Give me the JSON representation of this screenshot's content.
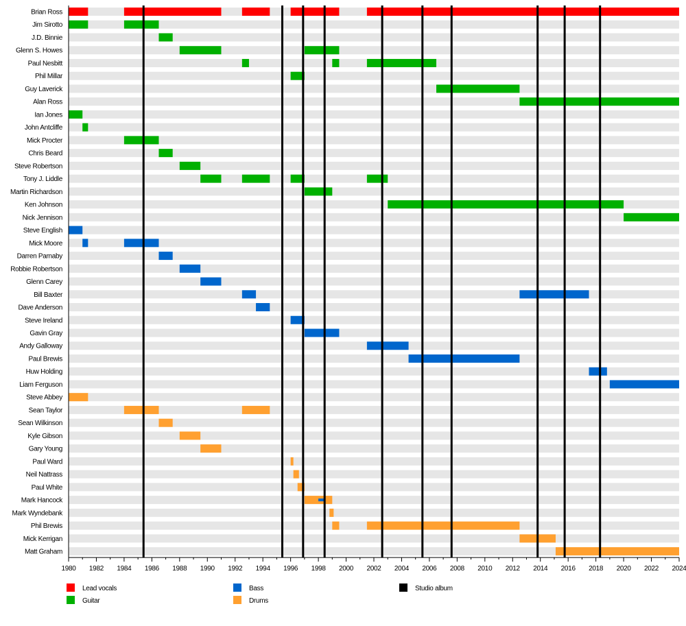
{
  "chart_data": {
    "type": "timeline",
    "xlim": [
      1980,
      2024
    ],
    "x_ticks": [
      1980,
      1982,
      1984,
      1986,
      1988,
      1990,
      1992,
      1994,
      1996,
      1998,
      2000,
      2002,
      2004,
      2006,
      2008,
      2010,
      2012,
      2014,
      2016,
      2018,
      2020,
      2022,
      2024
    ],
    "grid": false,
    "legend_position": "bottom",
    "roles": {
      "vocals": {
        "label": "Lead vocals",
        "color": "#ff0000"
      },
      "guitar": {
        "label": "Guitar",
        "color": "#00b000"
      },
      "bass": {
        "label": "Bass",
        "color": "#0066cc"
      },
      "drums": {
        "label": "Drums",
        "color": "#ffa030"
      },
      "album": {
        "label": "Studio album",
        "color": "#000000"
      }
    },
    "studio_albums": [
      1985.4,
      1995.4,
      1996.9,
      1998.45,
      2002.6,
      2005.5,
      2007.6,
      2013.8,
      2015.75,
      2018.3
    ],
    "members": [
      {
        "name": "Brian Ross",
        "bars": [
          [
            "vocals",
            1980,
            1981.4
          ],
          [
            "vocals",
            1984,
            1991
          ],
          [
            "vocals",
            1992.5,
            1994.5
          ],
          [
            "vocals",
            1996,
            1999.5
          ],
          [
            "vocals",
            2001.5,
            2024
          ]
        ]
      },
      {
        "name": "Jim Sirotto",
        "bars": [
          [
            "guitar",
            1980,
            1981.4
          ],
          [
            "guitar",
            1984,
            1986.5
          ]
        ]
      },
      {
        "name": "J.D. Binnie",
        "bars": [
          [
            "guitar",
            1986.5,
            1987.5
          ]
        ]
      },
      {
        "name": "Glenn S. Howes",
        "bars": [
          [
            "guitar",
            1988,
            1991
          ],
          [
            "guitar",
            1997,
            1999.5
          ]
        ]
      },
      {
        "name": "Paul Nesbitt",
        "bars": [
          [
            "guitar",
            1992.5,
            1993
          ],
          [
            "guitar",
            1999,
            1999.5
          ],
          [
            "guitar",
            2001.5,
            2006.5
          ]
        ]
      },
      {
        "name": "Phil Millar",
        "bars": [
          [
            "guitar",
            1996,
            1997
          ]
        ]
      },
      {
        "name": "Guy Laverick",
        "bars": [
          [
            "guitar",
            2006.5,
            2012.5
          ]
        ]
      },
      {
        "name": "Alan Ross",
        "bars": [
          [
            "guitar",
            2012.5,
            2024
          ]
        ]
      },
      {
        "name": "Ian Jones",
        "bars": [
          [
            "guitar",
            1980,
            1981
          ]
        ]
      },
      {
        "name": "John Antcliffe",
        "bars": [
          [
            "guitar",
            1981,
            1981.4
          ]
        ]
      },
      {
        "name": "Mick Procter",
        "bars": [
          [
            "guitar",
            1984,
            1986.5
          ]
        ]
      },
      {
        "name": "Chris Beard",
        "bars": [
          [
            "guitar",
            1986.5,
            1987.5
          ]
        ]
      },
      {
        "name": "Steve Robertson",
        "bars": [
          [
            "guitar",
            1988,
            1989.5
          ]
        ]
      },
      {
        "name": "Tony J. Liddle",
        "bars": [
          [
            "guitar",
            1989.5,
            1991
          ],
          [
            "guitar",
            1992.5,
            1994.5
          ],
          [
            "guitar",
            1996,
            1997
          ],
          [
            "guitar",
            2001.5,
            2003
          ]
        ]
      },
      {
        "name": "Martin Richardson",
        "bars": [
          [
            "guitar",
            1997,
            1999
          ]
        ]
      },
      {
        "name": "Ken Johnson",
        "bars": [
          [
            "guitar",
            2003,
            2020
          ]
        ]
      },
      {
        "name": "Nick Jennison",
        "bars": [
          [
            "guitar",
            2020,
            2024
          ]
        ]
      },
      {
        "name": "Steve English",
        "bars": [
          [
            "bass",
            1980,
            1981
          ]
        ]
      },
      {
        "name": "Mick Moore",
        "bars": [
          [
            "bass",
            1981,
            1981.4
          ],
          [
            "bass",
            1984,
            1986.5
          ]
        ]
      },
      {
        "name": "Darren Parnaby",
        "bars": [
          [
            "bass",
            1986.5,
            1987.5
          ]
        ]
      },
      {
        "name": "Robbie Robertson",
        "bars": [
          [
            "bass",
            1988,
            1989.5
          ]
        ]
      },
      {
        "name": "Glenn Carey",
        "bars": [
          [
            "bass",
            1989.5,
            1991
          ]
        ]
      },
      {
        "name": "Bill Baxter",
        "bars": [
          [
            "bass",
            1992.5,
            1993.5
          ],
          [
            "bass",
            2012.5,
            2017.5
          ]
        ]
      },
      {
        "name": "Dave Anderson",
        "bars": [
          [
            "bass",
            1993.5,
            1994.5
          ]
        ]
      },
      {
        "name": "Steve Ireland",
        "bars": [
          [
            "bass",
            1996,
            1997
          ]
        ]
      },
      {
        "name": "Gavin Gray",
        "bars": [
          [
            "bass",
            1997,
            1999.5
          ]
        ]
      },
      {
        "name": "Andy Galloway",
        "bars": [
          [
            "bass",
            2001.5,
            2004.5
          ]
        ]
      },
      {
        "name": "Paul Brewis",
        "bars": [
          [
            "bass",
            2004.5,
            2012.5
          ]
        ]
      },
      {
        "name": "Huw Holding",
        "bars": [
          [
            "bass",
            2017.5,
            2018.8
          ]
        ]
      },
      {
        "name": "Liam Ferguson",
        "bars": [
          [
            "bass",
            2019,
            2024
          ]
        ]
      },
      {
        "name": "Steve Abbey",
        "bars": [
          [
            "drums",
            1980,
            1981.4
          ]
        ]
      },
      {
        "name": "Sean Taylor",
        "bars": [
          [
            "drums",
            1984,
            1986.5
          ],
          [
            "drums",
            1992.5,
            1994.5
          ]
        ]
      },
      {
        "name": "Sean Wilkinson",
        "bars": [
          [
            "drums",
            1986.5,
            1987.5
          ]
        ]
      },
      {
        "name": "Kyle Gibson",
        "bars": [
          [
            "drums",
            1988,
            1989.5
          ]
        ]
      },
      {
        "name": "Gary Young",
        "bars": [
          [
            "drums",
            1989.5,
            1991
          ]
        ]
      },
      {
        "name": "Paul Ward",
        "bars": [
          [
            "drums",
            1996,
            1996.2
          ]
        ]
      },
      {
        "name": "Neil Nattrass",
        "bars": [
          [
            "drums",
            1996.2,
            1996.6
          ]
        ]
      },
      {
        "name": "Paul White",
        "bars": [
          [
            "drums",
            1996.5,
            1997
          ]
        ]
      },
      {
        "name": "Mark Hancock",
        "bars": [
          [
            "drums",
            1997,
            1999
          ],
          [
            "bass-thin",
            1998,
            1998.5
          ]
        ]
      },
      {
        "name": "Mark Wyndebank",
        "bars": [
          [
            "drums",
            1998.8,
            1999.1
          ]
        ]
      },
      {
        "name": "Phil Brewis",
        "bars": [
          [
            "drums",
            1999,
            1999.5
          ],
          [
            "drums",
            2001.5,
            2012.5
          ]
        ]
      },
      {
        "name": "Mick Kerrigan",
        "bars": [
          [
            "drums",
            2012.5,
            2015.1
          ]
        ]
      },
      {
        "name": "Matt Graham",
        "bars": [
          [
            "drums",
            2015.1,
            2024
          ]
        ]
      }
    ]
  }
}
